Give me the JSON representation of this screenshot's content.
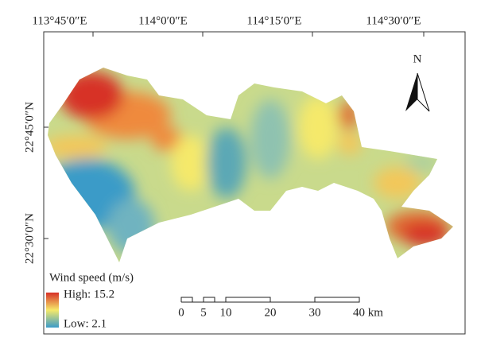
{
  "map": {
    "longitude_labels": [
      "113°45′0″E",
      "114°0′0″E",
      "114°15′0″E",
      "114°30′0″E"
    ],
    "latitude_labels": [
      "22°45′0″N",
      "22°30′0″N"
    ],
    "north_arrow": "N",
    "legend": {
      "title": "Wind speed (m/s)",
      "high": "High: 15.2",
      "low": "Low: 2.1"
    },
    "scale_bar": {
      "labels": [
        "0",
        "5",
        "10",
        "20",
        "30",
        "40 km"
      ]
    }
  }
}
